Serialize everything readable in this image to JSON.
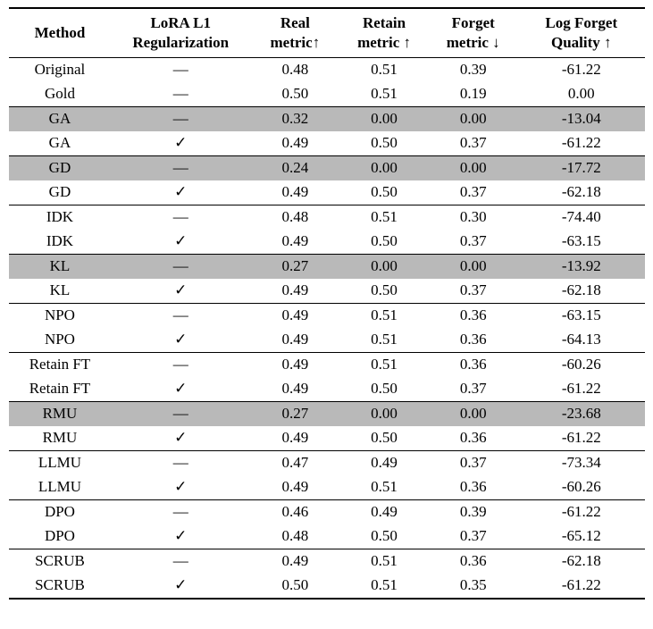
{
  "table": {
    "highlight_color": "#b9b9b9",
    "columns": [
      {
        "key": "method",
        "label_lines": [
          "Method"
        ]
      },
      {
        "key": "lora",
        "label_lines": [
          "LoRA L1",
          "Regularization"
        ]
      },
      {
        "key": "real",
        "label_lines": [
          "Real",
          "metric↑"
        ]
      },
      {
        "key": "retain",
        "label_lines": [
          "Retain",
          "metric ↑"
        ]
      },
      {
        "key": "forget",
        "label_lines": [
          "Forget",
          "metric ↓"
        ]
      },
      {
        "key": "quality",
        "label_lines": [
          "Log Forget",
          "Quality ↑"
        ]
      }
    ],
    "rows": [
      {
        "method": "Original",
        "lora": "—",
        "real": "0.48",
        "retain": "0.51",
        "forget": "0.39",
        "quality": "-61.22",
        "highlight": false,
        "group_end": false
      },
      {
        "method": "Gold",
        "lora": "—",
        "real": "0.50",
        "retain": "0.51",
        "forget": "0.19",
        "quality": "0.00",
        "highlight": false,
        "group_end": true
      },
      {
        "method": "GA",
        "lora": "—",
        "real": "0.32",
        "retain": "0.00",
        "forget": "0.00",
        "quality": "-13.04",
        "highlight": true,
        "group_end": false
      },
      {
        "method": "GA",
        "lora": "✓",
        "real": "0.49",
        "retain": "0.50",
        "forget": "0.37",
        "quality": "-61.22",
        "highlight": false,
        "group_end": true
      },
      {
        "method": "GD",
        "lora": "—",
        "real": "0.24",
        "retain": "0.00",
        "forget": "0.00",
        "quality": "-17.72",
        "highlight": true,
        "group_end": false
      },
      {
        "method": "GD",
        "lora": "✓",
        "real": "0.49",
        "retain": "0.50",
        "forget": "0.37",
        "quality": "-62.18",
        "highlight": false,
        "group_end": true
      },
      {
        "method": "IDK",
        "lora": "—",
        "real": "0.48",
        "retain": "0.51",
        "forget": "0.30",
        "quality": "-74.40",
        "highlight": false,
        "group_end": false
      },
      {
        "method": "IDK",
        "lora": "✓",
        "real": "0.49",
        "retain": "0.50",
        "forget": "0.37",
        "quality": "-63.15",
        "highlight": false,
        "group_end": true
      },
      {
        "method": "KL",
        "lora": "—",
        "real": "0.27",
        "retain": "0.00",
        "forget": "0.00",
        "quality": "-13.92",
        "highlight": true,
        "group_end": false
      },
      {
        "method": "KL",
        "lora": "✓",
        "real": "0.49",
        "retain": "0.50",
        "forget": "0.37",
        "quality": "-62.18",
        "highlight": false,
        "group_end": true
      },
      {
        "method": "NPO",
        "lora": "—",
        "real": "0.49",
        "retain": "0.51",
        "forget": "0.36",
        "quality": "-63.15",
        "highlight": false,
        "group_end": false
      },
      {
        "method": "NPO",
        "lora": "✓",
        "real": "0.49",
        "retain": "0.51",
        "forget": "0.36",
        "quality": "-64.13",
        "highlight": false,
        "group_end": true
      },
      {
        "method": "Retain FT",
        "lora": "—",
        "real": "0.49",
        "retain": "0.51",
        "forget": "0.36",
        "quality": "-60.26",
        "highlight": false,
        "group_end": false
      },
      {
        "method": "Retain FT",
        "lora": "✓",
        "real": "0.49",
        "retain": "0.50",
        "forget": "0.37",
        "quality": "-61.22",
        "highlight": false,
        "group_end": true
      },
      {
        "method": "RMU",
        "lora": "—",
        "real": "0.27",
        "retain": "0.00",
        "forget": "0.00",
        "quality": "-23.68",
        "highlight": true,
        "group_end": false
      },
      {
        "method": "RMU",
        "lora": "✓",
        "real": "0.49",
        "retain": "0.50",
        "forget": "0.36",
        "quality": "-61.22",
        "highlight": false,
        "group_end": true
      },
      {
        "method": "LLMU",
        "lora": "—",
        "real": "0.47",
        "retain": "0.49",
        "forget": "0.37",
        "quality": "-73.34",
        "highlight": false,
        "group_end": false
      },
      {
        "method": "LLMU",
        "lora": "✓",
        "real": "0.49",
        "retain": "0.51",
        "forget": "0.36",
        "quality": "-60.26",
        "highlight": false,
        "group_end": true
      },
      {
        "method": "DPO",
        "lora": "—",
        "real": "0.46",
        "retain": "0.49",
        "forget": "0.39",
        "quality": "-61.22",
        "highlight": false,
        "group_end": false
      },
      {
        "method": "DPO",
        "lora": "✓",
        "real": "0.48",
        "retain": "0.50",
        "forget": "0.37",
        "quality": "-65.12",
        "highlight": false,
        "group_end": true
      },
      {
        "method": "SCRUB",
        "lora": "—",
        "real": "0.49",
        "retain": "0.51",
        "forget": "0.36",
        "quality": "-62.18",
        "highlight": false,
        "group_end": false
      },
      {
        "method": "SCRUB",
        "lora": "✓",
        "real": "0.50",
        "retain": "0.51",
        "forget": "0.35",
        "quality": "-61.22",
        "highlight": false,
        "group_end": false
      }
    ]
  }
}
